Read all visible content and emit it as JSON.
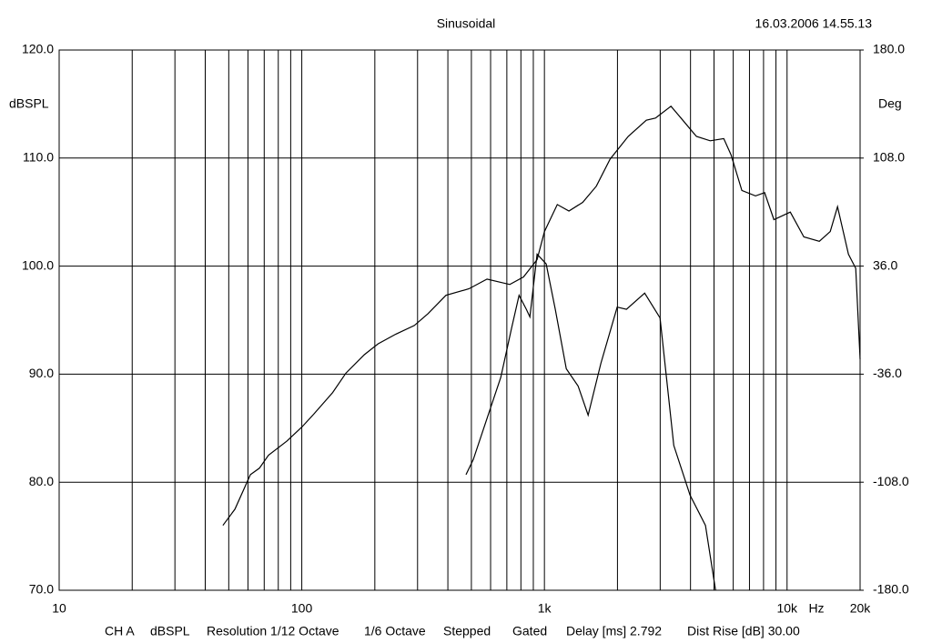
{
  "chart_data": {
    "type": "line",
    "title": "Sinusoidal",
    "timestamp": "16.03.2006 14.55.13",
    "y_label": "dBSPL",
    "y2_label": "Deg",
    "x_unit": "Hz",
    "footer": [
      "CH A",
      "dBSPL",
      "Resolution 1/12 Octave",
      "1/6 Octave",
      "Stepped",
      "Gated",
      "Delay [ms] 2.792",
      "Dist Rise [dB] 30.00"
    ],
    "xscale": "log",
    "xlim": [
      10,
      20000
    ],
    "xticks": [
      10,
      100,
      {
        "value": 1000,
        "label": "1k"
      },
      {
        "value": 10000,
        "label": "10k"
      },
      {
        "value": 20000,
        "label": "20k"
      }
    ],
    "xgrid_minor": [
      20,
      30,
      40,
      50,
      60,
      70,
      80,
      90,
      200,
      300,
      400,
      500,
      600,
      700,
      800,
      900,
      2000,
      3000,
      4000,
      5000,
      6000,
      7000,
      8000,
      9000
    ],
    "ylim": [
      70,
      120
    ],
    "yticks": [
      {
        "value": 70,
        "label": "70.0"
      },
      {
        "value": 80,
        "label": "80.0"
      },
      {
        "value": 90,
        "label": "90.0"
      },
      {
        "value": 100,
        "label": "100.0"
      },
      {
        "value": 110,
        "label": "110.0"
      },
      {
        "value": 120,
        "label": "120.0"
      }
    ],
    "y2lim": [
      -180,
      180
    ],
    "y2ticks": [
      {
        "value": -180,
        "label": "-180.0"
      },
      {
        "value": -108,
        "label": "-108.0"
      },
      {
        "value": -36,
        "label": "-36.0"
      },
      {
        "value": 36,
        "label": "36.0"
      },
      {
        "value": 108,
        "label": "108.0"
      },
      {
        "value": 180,
        "label": "180.0"
      }
    ],
    "grid": true,
    "series": [
      {
        "color": "#000000",
        "x": [
          47.3,
          53,
          61.4,
          66.9,
          72.9,
          86.7,
          100,
          112,
          134,
          152,
          181,
          206,
          244,
          291,
          331,
          393,
          489,
          580,
          720,
          820,
          933,
          1000,
          1130,
          1262,
          1438,
          1637,
          1864,
          2214,
          2630,
          2870,
          3323,
          3654,
          4233,
          4821,
          5485,
          5875,
          6513,
          7413,
          8085,
          8825,
          10310,
          11730,
          13580,
          15060,
          16140,
          17900,
          19180,
          20000
        ],
        "values": [
          76.0,
          77.5,
          80.7,
          81.3,
          82.5,
          83.8,
          85.1,
          86.3,
          88.3,
          90.1,
          91.8,
          92.8,
          93.7,
          94.5,
          95.6,
          97.3,
          97.9,
          98.8,
          98.3,
          99.0,
          100.6,
          103.2,
          105.7,
          105.1,
          105.9,
          107.4,
          109.9,
          112.0,
          113.5,
          113.7,
          114.8,
          113.7,
          112.0,
          111.6,
          111.8,
          110.3,
          107.0,
          106.5,
          106.8,
          104.3,
          105.0,
          102.7,
          102.3,
          103.2,
          105.5,
          101.1,
          99.8,
          91.4
        ]
      },
      {
        "color": "#000000",
        "x": [
          475,
          509,
          580,
          661,
          733,
          786,
          842,
          871,
          933,
          1017,
          1109,
          1231,
          1377,
          1514,
          1709,
          1995,
          2178,
          2588,
          2997,
          3413,
          3984,
          4612,
          5072
        ],
        "values": [
          80.7,
          82.1,
          85.9,
          89.7,
          94.3,
          97.3,
          96.0,
          95.3,
          101.1,
          100.2,
          96.0,
          90.5,
          88.9,
          86.2,
          91.0,
          96.2,
          96.0,
          97.5,
          95.2,
          83.4,
          78.8,
          76.0,
          70.0
        ]
      }
    ]
  }
}
